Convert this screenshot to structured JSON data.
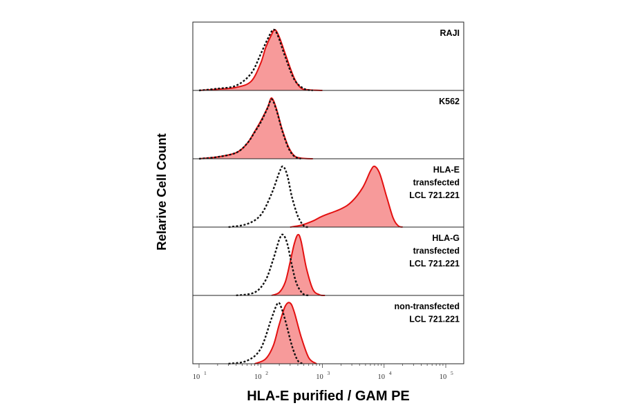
{
  "chart_data": {
    "type": "area",
    "xlabel": "HLA-E purified / GAM PE",
    "ylabel": "Relarive Cell Count",
    "x_scale": "log",
    "xlim": [
      10,
      300000
    ],
    "x_ticks": [
      {
        "base": "10",
        "exp": "1",
        "value": 10
      },
      {
        "base": "10",
        "exp": "2",
        "value": 100
      },
      {
        "base": "10",
        "exp": "3",
        "value": 1000
      },
      {
        "base": "10",
        "exp": "4",
        "value": 10000
      },
      {
        "base": "10",
        "exp": "5",
        "value": 100000
      }
    ],
    "colors": {
      "stained_fill": "#f79a9a",
      "stained_line": "#e31010",
      "control_line": "#111111"
    },
    "series_style": {
      "stained": "filled red histogram",
      "control": "dotted black histogram"
    },
    "panels": [
      {
        "label_lines": [
          "RAJI"
        ],
        "stained": {
          "points": [
            [
              10,
              0
            ],
            [
              20,
              0.02
            ],
            [
              40,
              0.05
            ],
            [
              70,
              0.15
            ],
            [
              100,
              0.45
            ],
            [
              120,
              0.7
            ],
            [
              150,
              0.92
            ],
            [
              170,
              1.0
            ],
            [
              200,
              0.88
            ],
            [
              250,
              0.6
            ],
            [
              350,
              0.2
            ],
            [
              450,
              0.04
            ],
            [
              600,
              0.01
            ],
            [
              1000,
              0
            ]
          ]
        },
        "control": {
          "points": [
            [
              10,
              0
            ],
            [
              20,
              0.03
            ],
            [
              40,
              0.08
            ],
            [
              70,
              0.28
            ],
            [
              100,
              0.6
            ],
            [
              130,
              0.85
            ],
            [
              160,
              1.0
            ],
            [
              190,
              0.9
            ],
            [
              250,
              0.55
            ],
            [
              350,
              0.18
            ],
            [
              500,
              0.03
            ],
            [
              700,
              0
            ]
          ]
        }
      },
      {
        "label_lines": [
          "K562"
        ],
        "stained": {
          "points": [
            [
              10,
              0
            ],
            [
              20,
              0.03
            ],
            [
              40,
              0.1
            ],
            [
              60,
              0.25
            ],
            [
              80,
              0.45
            ],
            [
              100,
              0.62
            ],
            [
              130,
              0.85
            ],
            [
              150,
              1.0
            ],
            [
              180,
              0.82
            ],
            [
              220,
              0.5
            ],
            [
              280,
              0.2
            ],
            [
              350,
              0.05
            ],
            [
              450,
              0.01
            ],
            [
              700,
              0
            ]
          ]
        },
        "control": {
          "points": [
            [
              10,
              0
            ],
            [
              20,
              0.03
            ],
            [
              40,
              0.1
            ],
            [
              60,
              0.25
            ],
            [
              80,
              0.44
            ],
            [
              100,
              0.6
            ],
            [
              130,
              0.84
            ],
            [
              150,
              0.98
            ],
            [
              180,
              0.8
            ],
            [
              220,
              0.48
            ],
            [
              280,
              0.18
            ],
            [
              350,
              0.04
            ],
            [
              450,
              0
            ]
          ]
        }
      },
      {
        "label_lines": [
          "HLA-E",
          "transfected",
          "LCL 721.221"
        ],
        "stained": {
          "points": [
            [
              300,
              0
            ],
            [
              450,
              0.03
            ],
            [
              700,
              0.1
            ],
            [
              1000,
              0.18
            ],
            [
              2000,
              0.3
            ],
            [
              3000,
              0.42
            ],
            [
              4500,
              0.65
            ],
            [
              6000,
              0.92
            ],
            [
              7000,
              1.0
            ],
            [
              8500,
              0.88
            ],
            [
              11000,
              0.5
            ],
            [
              14000,
              0.15
            ],
            [
              17000,
              0.02
            ],
            [
              20000,
              0
            ]
          ]
        },
        "control": {
          "points": [
            [
              30,
              0
            ],
            [
              60,
              0.05
            ],
            [
              100,
              0.2
            ],
            [
              150,
              0.55
            ],
            [
              200,
              0.9
            ],
            [
              230,
              1.0
            ],
            [
              270,
              0.85
            ],
            [
              320,
              0.5
            ],
            [
              400,
              0.18
            ],
            [
              500,
              0.02
            ],
            [
              600,
              0
            ]
          ]
        }
      },
      {
        "label_lines": [
          "HLA-G",
          "transfected",
          "LCL 721.221"
        ],
        "stained": {
          "points": [
            [
              150,
              0
            ],
            [
              200,
              0.05
            ],
            [
              250,
              0.22
            ],
            [
              300,
              0.55
            ],
            [
              350,
              0.85
            ],
            [
              400,
              1.0
            ],
            [
              450,
              0.9
            ],
            [
              550,
              0.45
            ],
            [
              700,
              0.1
            ],
            [
              900,
              0.01
            ],
            [
              1100,
              0
            ]
          ]
        },
        "control": {
          "points": [
            [
              40,
              0
            ],
            [
              80,
              0.05
            ],
            [
              120,
              0.25
            ],
            [
              160,
              0.6
            ],
            [
              200,
              0.92
            ],
            [
              230,
              1.0
            ],
            [
              270,
              0.85
            ],
            [
              320,
              0.5
            ],
            [
              380,
              0.2
            ],
            [
              480,
              0.03
            ],
            [
              600,
              0
            ]
          ]
        }
      },
      {
        "label_lines": [
          "non-transfected",
          "LCL 721.221"
        ],
        "stained": {
          "points": [
            [
              80,
              0
            ],
            [
              120,
              0.08
            ],
            [
              160,
              0.3
            ],
            [
              200,
              0.65
            ],
            [
              250,
              0.95
            ],
            [
              300,
              1.0
            ],
            [
              350,
              0.85
            ],
            [
              450,
              0.45
            ],
            [
              600,
              0.1
            ],
            [
              800,
              0
            ]
          ]
        },
        "control": {
          "points": [
            [
              30,
              0
            ],
            [
              60,
              0.05
            ],
            [
              100,
              0.25
            ],
            [
              150,
              0.75
            ],
            [
              190,
              1.0
            ],
            [
              220,
              0.9
            ],
            [
              260,
              0.65
            ],
            [
              320,
              0.3
            ],
            [
              400,
              0.05
            ],
            [
              500,
              0
            ]
          ]
        }
      }
    ]
  }
}
